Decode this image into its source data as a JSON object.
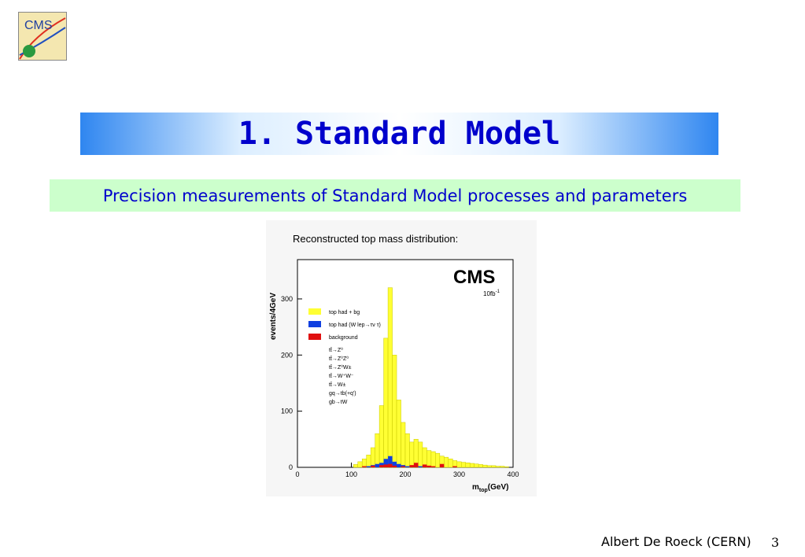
{
  "slide": {
    "title": "1. Standard Model",
    "subtitle": "Precision measurements of Standard Model processes and parameters",
    "footer": "Albert De Roeck (CERN)",
    "page_number": "3",
    "logo": "CMS"
  },
  "chart_data": {
    "type": "histogram",
    "title": "Reconstructed top mass distribution:",
    "ylabel": "events/4GeV",
    "xlabel": [
      "m",
      "top",
      "(GeV)"
    ],
    "annotation": {
      "experiment": "CMS",
      "luminosity": "10fb",
      "luminosity_exponent": "-1"
    },
    "xlim": [
      0,
      400
    ],
    "xticks": [
      0,
      100,
      200,
      300,
      400
    ],
    "ylim": [
      0,
      370
    ],
    "yticks": [
      0,
      100,
      200,
      300
    ],
    "bins": [
      104,
      112,
      120,
      128,
      136,
      144,
      152,
      160,
      168,
      176,
      184,
      192,
      200,
      208,
      216,
      224,
      232,
      240,
      248,
      256,
      264,
      272,
      280,
      288,
      296,
      304,
      312,
      320,
      328,
      336,
      344,
      352,
      360,
      368,
      376,
      384,
      392
    ],
    "series": [
      {
        "name": "top had + bg",
        "color": "#ffff33",
        "values": [
          5,
          10,
          15,
          22,
          35,
          60,
          110,
          230,
          320,
          200,
          120,
          80,
          60,
          45,
          50,
          45,
          35,
          30,
          28,
          25,
          20,
          18,
          15,
          12,
          10,
          9,
          8,
          7,
          6,
          5,
          4,
          3,
          3,
          2,
          2,
          1
        ]
      },
      {
        "name": "top had (W lep→τν τ)",
        "color": "#1040e0",
        "values": [
          0,
          0,
          0,
          2,
          4,
          6,
          8,
          15,
          20,
          10,
          6,
          4,
          2,
          3,
          4,
          2,
          0,
          2,
          0,
          0,
          1,
          0,
          0,
          0,
          0,
          0,
          0,
          0,
          0,
          0,
          0,
          0,
          0,
          0,
          0,
          0
        ]
      },
      {
        "name": "background",
        "color": "#e01010",
        "values": [
          0,
          0,
          2,
          0,
          3,
          0,
          4,
          5,
          6,
          3,
          0,
          2,
          0,
          4,
          8,
          0,
          5,
          3,
          2,
          0,
          6,
          0,
          0,
          2,
          0,
          0,
          0,
          0,
          0,
          0,
          0,
          0,
          0,
          0,
          0,
          0
        ]
      }
    ],
    "legend_notes": [
      "tt̄→Z⁰",
      "tt̄→Z⁰Z⁰",
      "tt̄→Z⁰W±",
      "tt̄→W⁺W⁻",
      "tt̄→W±",
      "gq→tb(+q')",
      "gb→tW"
    ]
  }
}
